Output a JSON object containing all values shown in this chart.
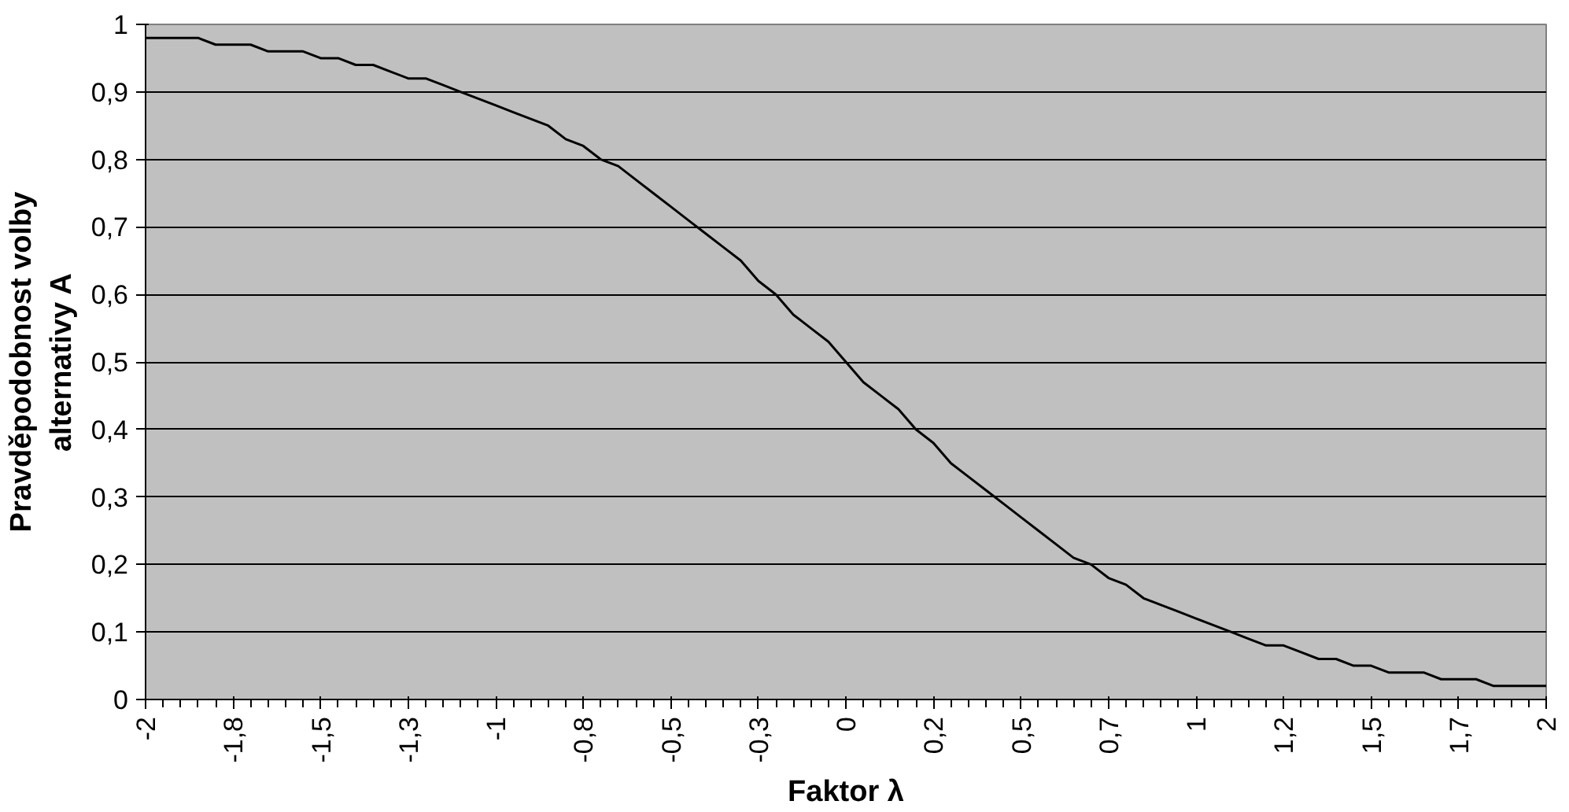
{
  "chart_data": {
    "type": "line",
    "xlabel": "Faktor λ",
    "ylabel": "Pravděpodobnost volby\nalternativy A",
    "categories": [
      "-2",
      null,
      null,
      null,
      null,
      "-1,8",
      null,
      null,
      null,
      null,
      "-1,5",
      null,
      null,
      null,
      null,
      "-1,3",
      null,
      null,
      null,
      null,
      "-1",
      null,
      null,
      null,
      null,
      "-0,8",
      null,
      null,
      null,
      null,
      "-0,5",
      null,
      null,
      null,
      null,
      "-0,3",
      null,
      null,
      null,
      null,
      "0",
      null,
      null,
      null,
      null,
      "0,2",
      null,
      null,
      null,
      null,
      "0,5",
      null,
      null,
      null,
      null,
      "0,7",
      null,
      null,
      null,
      null,
      "1",
      null,
      null,
      null,
      null,
      "1,2",
      null,
      null,
      null,
      null,
      "1,5",
      null,
      null,
      null,
      null,
      "1,7",
      null,
      null,
      null,
      null,
      "2"
    ],
    "series": [
      {
        "color": "#000000",
        "values": [
          0.98,
          0.98,
          0.98,
          0.98,
          0.97,
          0.97,
          0.97,
          0.96,
          0.96,
          0.96,
          0.95,
          0.95,
          0.94,
          0.94,
          0.93,
          0.92,
          0.92,
          0.91,
          0.9,
          0.89,
          0.88,
          0.87,
          0.86,
          0.85,
          0.83,
          0.82,
          0.8,
          0.79,
          0.77,
          0.75,
          0.73,
          0.71,
          0.69,
          0.67,
          0.65,
          0.62,
          0.6,
          0.57,
          0.55,
          0.53,
          0.5,
          0.47,
          0.45,
          0.43,
          0.4,
          0.38,
          0.35,
          0.33,
          0.31,
          0.29,
          0.27,
          0.25,
          0.23,
          0.21,
          0.2,
          0.18,
          0.17,
          0.15,
          0.14,
          0.13,
          0.12,
          0.11,
          0.1,
          0.09,
          0.08,
          0.08,
          0.07,
          0.06,
          0.06,
          0.05,
          0.05,
          0.04,
          0.04,
          0.04,
          0.03,
          0.03,
          0.03,
          0.02,
          0.02,
          0.02,
          0.02
        ]
      }
    ],
    "ylim": [
      0,
      1
    ],
    "yticks": [
      0,
      {
        "value": 0.1,
        "label": "0,1"
      },
      {
        "value": 0.2,
        "label": "0,2"
      },
      {
        "value": 0.3,
        "label": "0,3"
      },
      {
        "value": 0.4,
        "label": "0,4"
      },
      {
        "value": 0.5,
        "label": "0,5"
      },
      {
        "value": 0.6,
        "label": "0,6"
      },
      {
        "value": 0.7,
        "label": "0,7"
      },
      {
        "value": 0.8,
        "label": "0,8"
      },
      {
        "value": 0.9,
        "label": "0,9"
      },
      1
    ],
    "grid": "y",
    "marker": "none",
    "line_style": "solid"
  }
}
